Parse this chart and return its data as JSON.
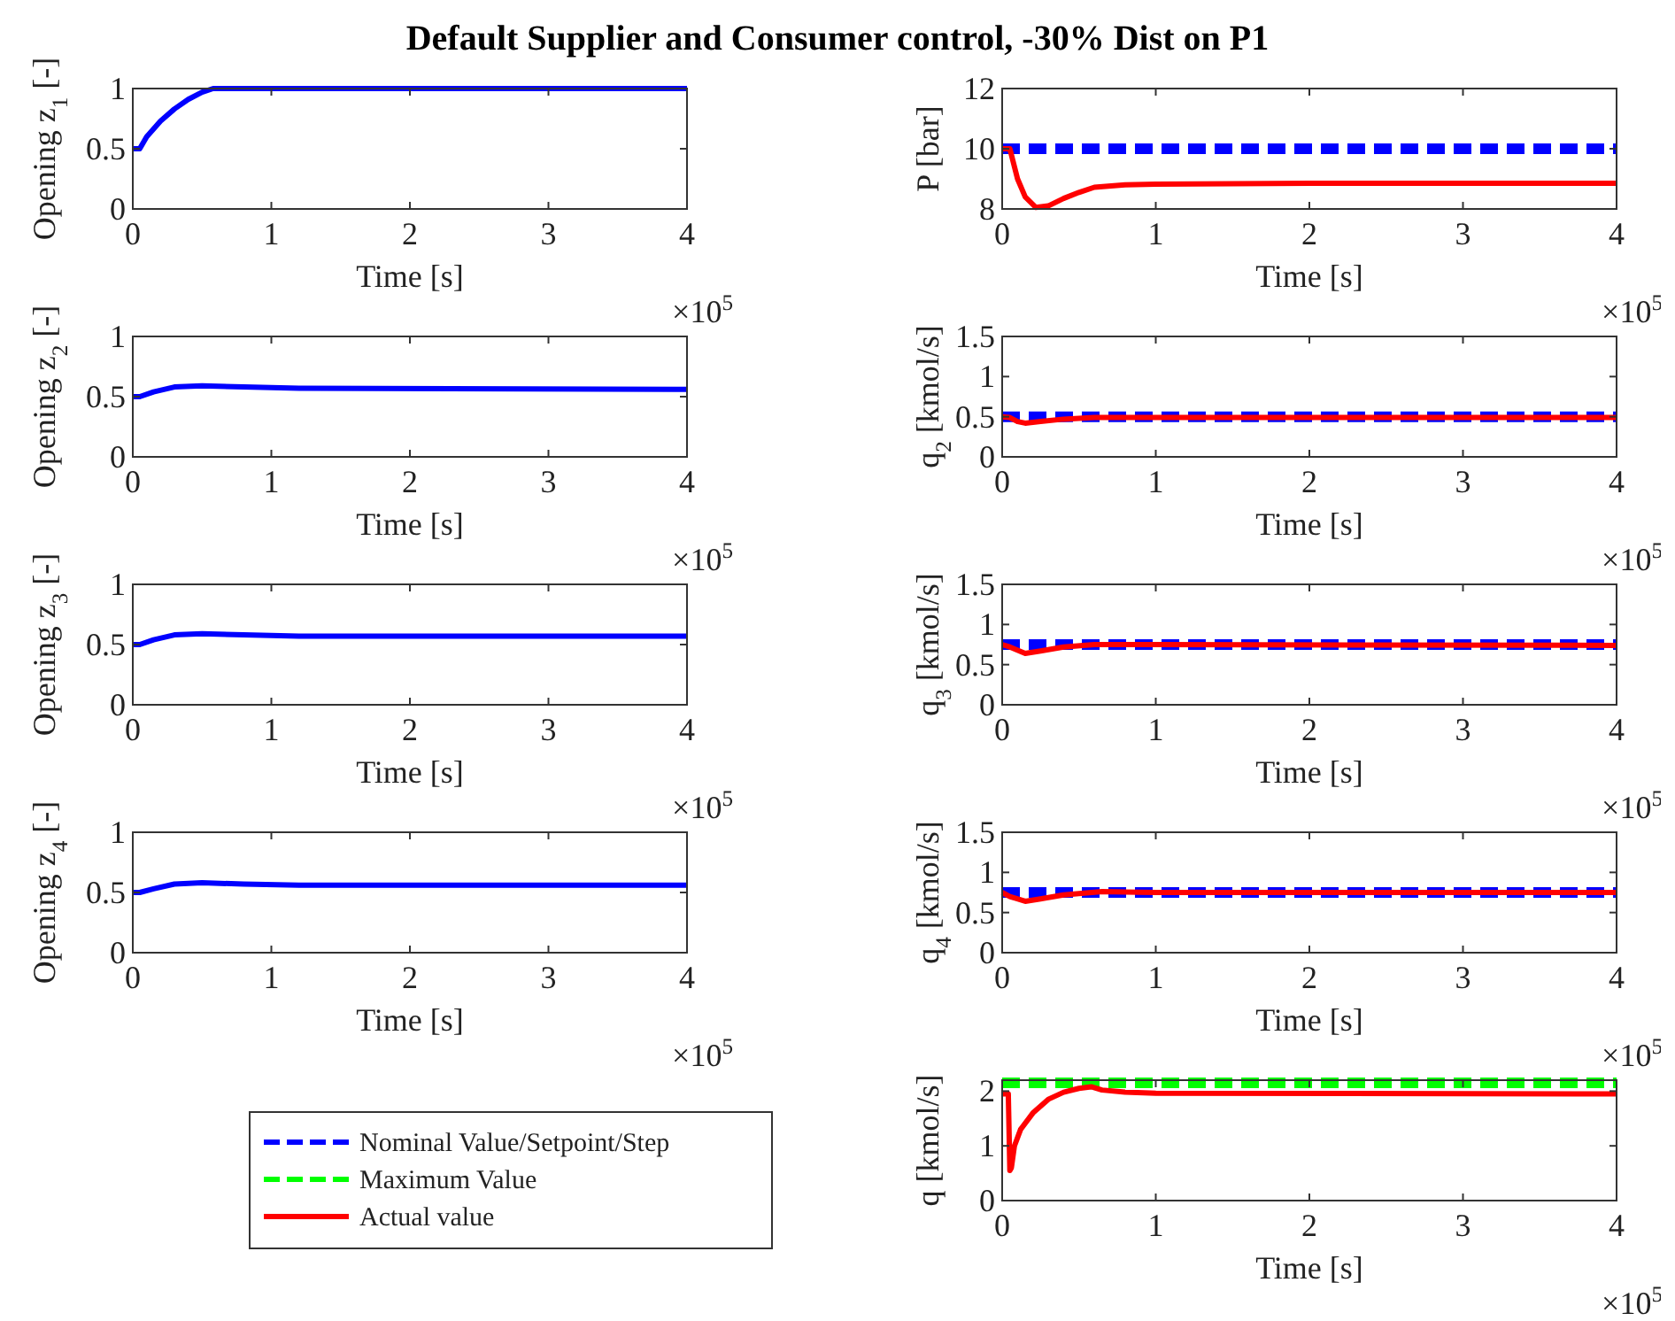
{
  "chart_data": [
    {
      "type": "line",
      "title": "Default Supplier and Consumer control, -30% Dist on P1",
      "xlabel": "Time [s]",
      "ylabel": "Opening z$_{1}$ [-]",
      "annotations": [
        "×10$^{5}$"
      ],
      "xlim": [
        0,
        4
      ],
      "xticks": [
        0,
        1,
        2,
        3,
        4
      ],
      "ylim": [
        0,
        1
      ],
      "yticks": [
        0,
        0.5,
        1
      ],
      "series": [
        {
          "color": "#0000ff",
          "line_style": "solid",
          "x": [
            0,
            0.05,
            0.1,
            0.2,
            0.3,
            0.4,
            0.5,
            0.58,
            1,
            2,
            3,
            4
          ],
          "values": [
            0.5,
            0.5,
            0.6,
            0.73,
            0.83,
            0.91,
            0.97,
            1,
            1,
            1,
            1,
            1
          ]
        }
      ]
    },
    {
      "type": "line",
      "xlabel": "Time [s]",
      "ylabel": "P [bar]",
      "annotations": [
        "×10$^{5}$"
      ],
      "xlim": [
        0,
        4
      ],
      "xticks": [
        0,
        1,
        2,
        3,
        4
      ],
      "ylim": [
        8,
        12
      ],
      "yticks": [
        8,
        10,
        12
      ],
      "series": [
        {
          "name": "Nominal Value/Setpoint/Step",
          "color": "#0000ff",
          "line_style": "dashed",
          "x": [
            0,
            4
          ],
          "values": [
            10,
            10
          ]
        },
        {
          "name": "Actual value",
          "color": "#ff0000",
          "line_style": "solid",
          "x": [
            0,
            0.05,
            0.1,
            0.15,
            0.22,
            0.3,
            0.4,
            0.5,
            0.6,
            0.8,
            1,
            2,
            4
          ],
          "values": [
            10,
            10,
            9,
            8.4,
            8.05,
            8.1,
            8.35,
            8.55,
            8.72,
            8.8,
            8.82,
            8.85,
            8.85
          ]
        }
      ]
    },
    {
      "type": "line",
      "xlabel": "Time [s]",
      "ylabel": "Opening z$_{2}$ [-]",
      "annotations": [
        "×10$^{5}$"
      ],
      "xlim": [
        0,
        4
      ],
      "xticks": [
        0,
        1,
        2,
        3,
        4
      ],
      "ylim": [
        0,
        1
      ],
      "yticks": [
        0,
        0.5,
        1
      ],
      "series": [
        {
          "color": "#0000ff",
          "line_style": "solid",
          "x": [
            0,
            0.05,
            0.15,
            0.3,
            0.5,
            0.8,
            1.2,
            4
          ],
          "values": [
            0.5,
            0.5,
            0.54,
            0.58,
            0.59,
            0.58,
            0.57,
            0.56
          ]
        }
      ]
    },
    {
      "type": "line",
      "xlabel": "Time [s]",
      "ylabel": "q$_{2}$ [kmol/s]",
      "annotations": [
        "×10$^{5}$"
      ],
      "xlim": [
        0,
        4
      ],
      "xticks": [
        0,
        1,
        2,
        3,
        4
      ],
      "ylim": [
        0,
        1.5
      ],
      "yticks": [
        0,
        0.5,
        1,
        1.5
      ],
      "series": [
        {
          "color": "#0000ff",
          "line_style": "dashed",
          "x": [
            0,
            4
          ],
          "values": [
            0.5,
            0.5
          ]
        },
        {
          "color": "#ff0000",
          "line_style": "solid",
          "x": [
            0,
            0.05,
            0.1,
            0.15,
            0.25,
            0.4,
            0.6,
            1,
            4
          ],
          "values": [
            0.5,
            0.49,
            0.44,
            0.42,
            0.44,
            0.47,
            0.49,
            0.49,
            0.49
          ]
        }
      ]
    },
    {
      "type": "line",
      "xlabel": "Time [s]",
      "ylabel": "Opening z$_{3}$ [-]",
      "annotations": [
        "×10$^{5}$"
      ],
      "xlim": [
        0,
        4
      ],
      "xticks": [
        0,
        1,
        2,
        3,
        4
      ],
      "ylim": [
        0,
        1
      ],
      "yticks": [
        0,
        0.5,
        1
      ],
      "series": [
        {
          "color": "#0000ff",
          "line_style": "solid",
          "x": [
            0,
            0.05,
            0.15,
            0.3,
            0.5,
            0.8,
            1.2,
            4
          ],
          "values": [
            0.5,
            0.5,
            0.54,
            0.58,
            0.59,
            0.58,
            0.57,
            0.57
          ]
        }
      ]
    },
    {
      "type": "line",
      "xlabel": "Time [s]",
      "ylabel": "q$_{3}$ [kmol/s]",
      "annotations": [
        "×10$^{5}$"
      ],
      "xlim": [
        0,
        4
      ],
      "xticks": [
        0,
        1,
        2,
        3,
        4
      ],
      "ylim": [
        0,
        1.5
      ],
      "yticks": [
        0,
        0.5,
        1,
        1.5
      ],
      "series": [
        {
          "color": "#0000ff",
          "line_style": "dashed",
          "x": [
            0,
            4
          ],
          "values": [
            0.75,
            0.75
          ]
        },
        {
          "color": "#ff0000",
          "line_style": "solid",
          "x": [
            0,
            0.05,
            0.15,
            0.25,
            0.4,
            0.6,
            1,
            4
          ],
          "values": [
            0.75,
            0.72,
            0.64,
            0.67,
            0.72,
            0.75,
            0.75,
            0.74
          ]
        }
      ]
    },
    {
      "type": "line",
      "xlabel": "Time [s]",
      "ylabel": "Opening z$_{4}$ [-]",
      "annotations": [
        "×10$^{5}$"
      ],
      "xlim": [
        0,
        4
      ],
      "xticks": [
        0,
        1,
        2,
        3,
        4
      ],
      "ylim": [
        0,
        1
      ],
      "yticks": [
        0,
        0.5,
        1
      ],
      "series": [
        {
          "color": "#0000ff",
          "line_style": "solid",
          "x": [
            0,
            0.05,
            0.15,
            0.3,
            0.5,
            0.8,
            1.2,
            4
          ],
          "values": [
            0.5,
            0.5,
            0.53,
            0.57,
            0.58,
            0.57,
            0.56,
            0.56
          ]
        }
      ]
    },
    {
      "type": "line",
      "xlabel": "Time [s]",
      "ylabel": "q$_{4}$ [kmol/s]",
      "annotations": [
        "×10$^{5}$"
      ],
      "xlim": [
        0,
        4
      ],
      "xticks": [
        0,
        1,
        2,
        3,
        4
      ],
      "ylim": [
        0,
        1.5
      ],
      "yticks": [
        0,
        0.5,
        1,
        1.5
      ],
      "series": [
        {
          "color": "#0000ff",
          "line_style": "dashed",
          "x": [
            0,
            4
          ],
          "values": [
            0.75,
            0.75
          ]
        },
        {
          "color": "#ff0000",
          "line_style": "solid",
          "x": [
            0,
            0.05,
            0.15,
            0.25,
            0.4,
            0.65,
            1,
            4
          ],
          "values": [
            0.75,
            0.7,
            0.64,
            0.67,
            0.72,
            0.76,
            0.75,
            0.75
          ]
        }
      ]
    },
    {
      "type": "line",
      "xlabel": "Time [s]",
      "ylabel": "q [kmol/s]",
      "annotations": [
        "×10$^{5}$"
      ],
      "xlim": [
        0,
        4
      ],
      "xticks": [
        0,
        1,
        2,
        3,
        4
      ],
      "ylim": [
        0,
        2.2
      ],
      "yticks": [
        0,
        1,
        2
      ],
      "legend": "left",
      "series": [
        {
          "name": "Maximum Value",
          "color": "#00ff00",
          "line_style": "dashed",
          "x": [
            0,
            4
          ],
          "values": [
            2.15,
            2.15
          ]
        },
        {
          "color": "#ff0000",
          "line_style": "solid",
          "x": [
            0,
            0.04,
            0.05,
            0.06,
            0.08,
            0.12,
            0.2,
            0.3,
            0.4,
            0.5,
            0.58,
            0.65,
            0.8,
            1,
            4
          ],
          "values": [
            1.95,
            1.95,
            0.55,
            0.6,
            1,
            1.3,
            1.6,
            1.85,
            1.98,
            2.05,
            2.08,
            2.02,
            1.98,
            1.96,
            1.95
          ]
        }
      ]
    }
  ]
}
